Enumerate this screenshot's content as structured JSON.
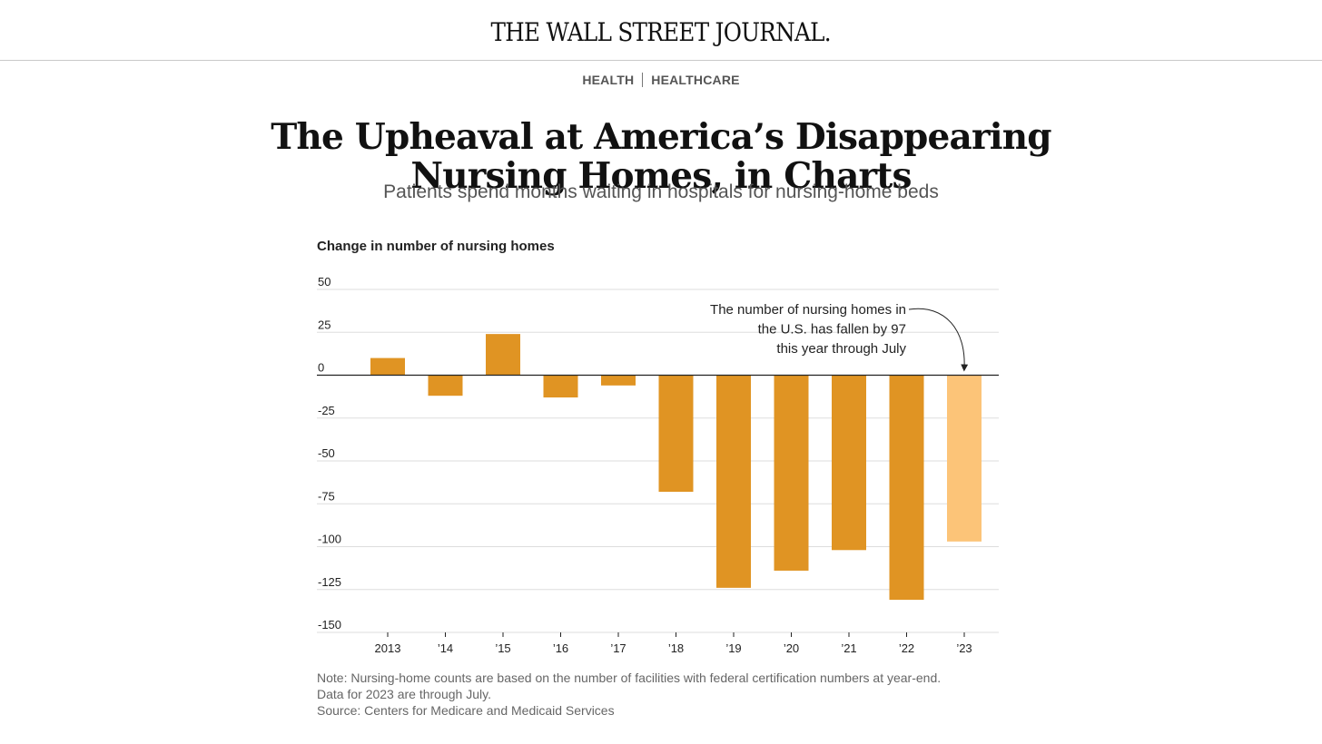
{
  "masthead": {
    "name": "THE WALL STREET JOURNAL."
  },
  "section": {
    "primary": "HEALTH",
    "secondary": "HEALTHCARE"
  },
  "article": {
    "headline": "The Upheaval at America’s Disappearing Nursing Homes, in Charts",
    "dek": "Patients spend months waiting in hospitals for nursing-home beds"
  },
  "chart_data": {
    "type": "bar",
    "title": "Change in number of nursing homes",
    "xlabel": "",
    "ylabel": "",
    "categories": [
      "2013",
      "’14",
      "’15",
      "’16",
      "’17",
      "’18",
      "’19",
      "’20",
      "’21",
      "’22",
      "’23"
    ],
    "values": [
      10,
      -12,
      24,
      -13,
      -6,
      -68,
      -124,
      -114,
      -102,
      -131,
      -97
    ],
    "ylim": [
      -150,
      50
    ],
    "yticks": [
      50,
      25,
      0,
      -25,
      -50,
      -75,
      -100,
      -125,
      -150
    ],
    "ytick_labels": [
      "50",
      "25",
      "0",
      "-25",
      "-50",
      "-75",
      "-100",
      "-125",
      "-150"
    ],
    "grid": true,
    "colors": {
      "bar": "#e09423",
      "highlight": "#fcc478",
      "grid": "#dddddd",
      "zero": "#222222"
    },
    "highlight_index": 10,
    "annotation": {
      "lines": [
        "The number of nursing homes in",
        "the U.S. has fallen by 97",
        "this year through July"
      ],
      "target_category": "’23"
    }
  },
  "note": {
    "line1": "Note: Nursing-home counts are based on the number of facilities with federal certification numbers at year-end.",
    "line2": "Data for 2023 are through July.",
    "source": "Source: Centers for Medicare and Medicaid Services"
  }
}
